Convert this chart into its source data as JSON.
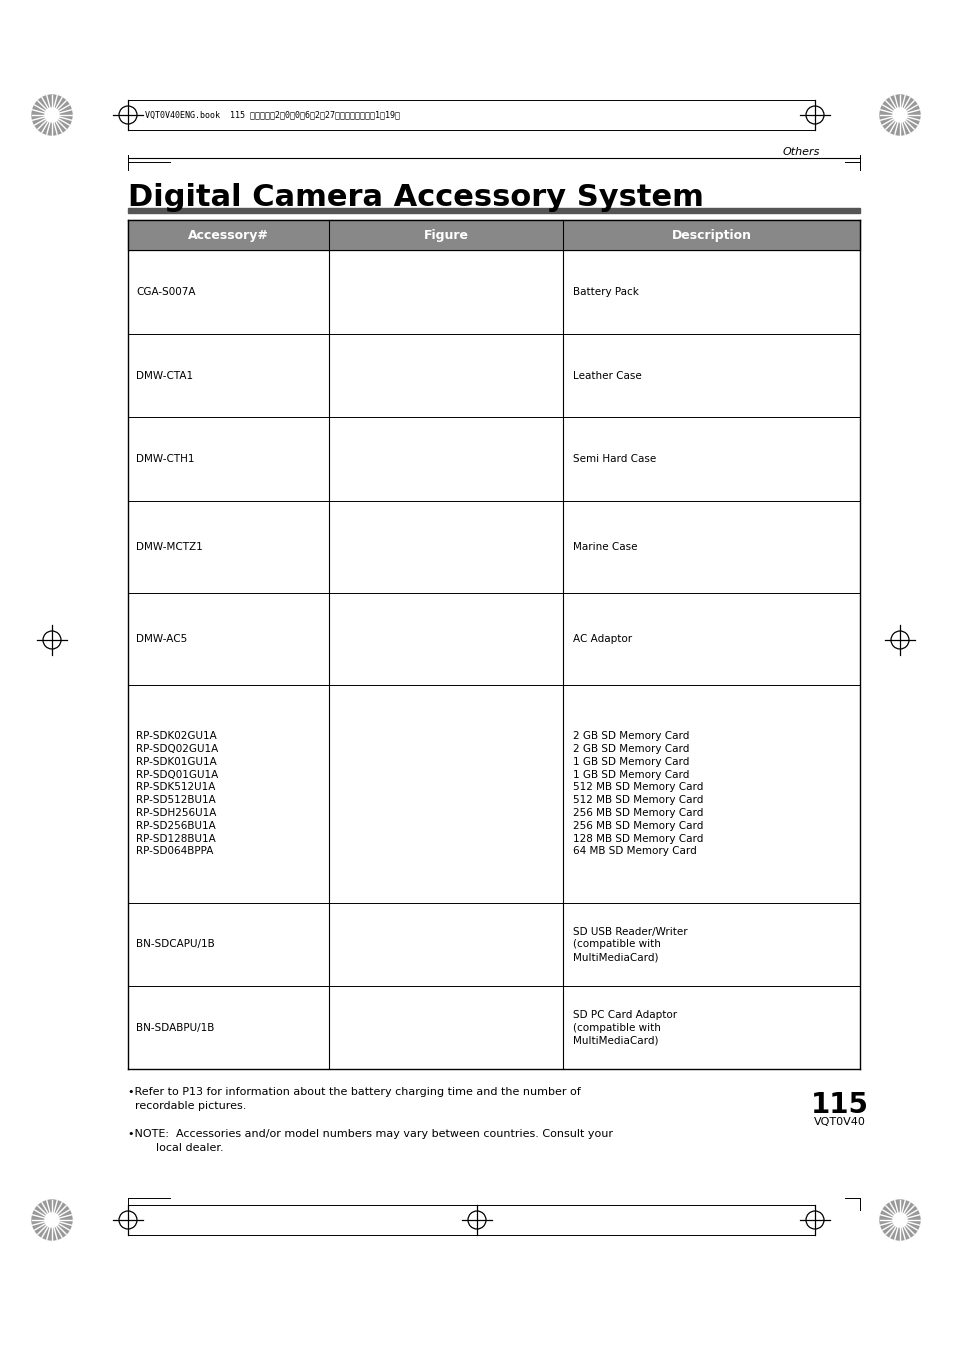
{
  "page_title": "Digital Camera Accessory System",
  "header_text": "VQT0V40ENG.book  115 ページ　　2　0　0　6年2月27日　月曜日　午後1時19分",
  "others_label": "Others",
  "page_number": "115",
  "page_code": "VQT0V40",
  "col_headers": [
    "Accessory#",
    "Figure",
    "Description"
  ],
  "col_header_bg": "#888888",
  "col_header_fg": "#ffffff",
  "rows": [
    {
      "accessory": "CGA-S007A",
      "description": "Battery Pack",
      "rh": 1.0
    },
    {
      "accessory": "DMW-CTA1",
      "description": "Leather Case",
      "rh": 1.0
    },
    {
      "accessory": "DMW-CTH1",
      "description": "Semi Hard Case",
      "rh": 1.0
    },
    {
      "accessory": "DMW-MCTZ1",
      "description": "Marine Case",
      "rh": 1.1
    },
    {
      "accessory": "DMW-AC5",
      "description": "AC Adaptor",
      "rh": 1.1
    },
    {
      "accessory": "RP-SDK02GU1A\nRP-SDQ02GU1A\nRP-SDK01GU1A\nRP-SDQ01GU1A\nRP-SDK512U1A\nRP-SD512BU1A\nRP-SDH256U1A\nRP-SD256BU1A\nRP-SD128BU1A\nRP-SD064BPPA",
      "description": "2 GB SD Memory Card\n2 GB SD Memory Card\n1 GB SD Memory Card\n1 GB SD Memory Card\n512 MB SD Memory Card\n512 MB SD Memory Card\n256 MB SD Memory Card\n256 MB SD Memory Card\n128 MB SD Memory Card\n64 MB SD Memory Card",
      "rh": 2.6
    },
    {
      "accessory": "BN-SDCAPU/1B",
      "description": "SD USB Reader/Writer\n(compatible with\nMultiMediaCard)",
      "rh": 1.0
    },
    {
      "accessory": "BN-SDABPU/1B",
      "description": "SD PC Card Adaptor\n(compatible with\nMultiMediaCard)",
      "rh": 1.0
    }
  ],
  "note1": "•Refer to P13 for information about the battery charging time and the number of\n  recordable pictures.",
  "note2": "•NOTE:  Accessories and/or model numbers may vary between countries. Consult your\n        local dealer.",
  "bg_color": "#ffffff"
}
